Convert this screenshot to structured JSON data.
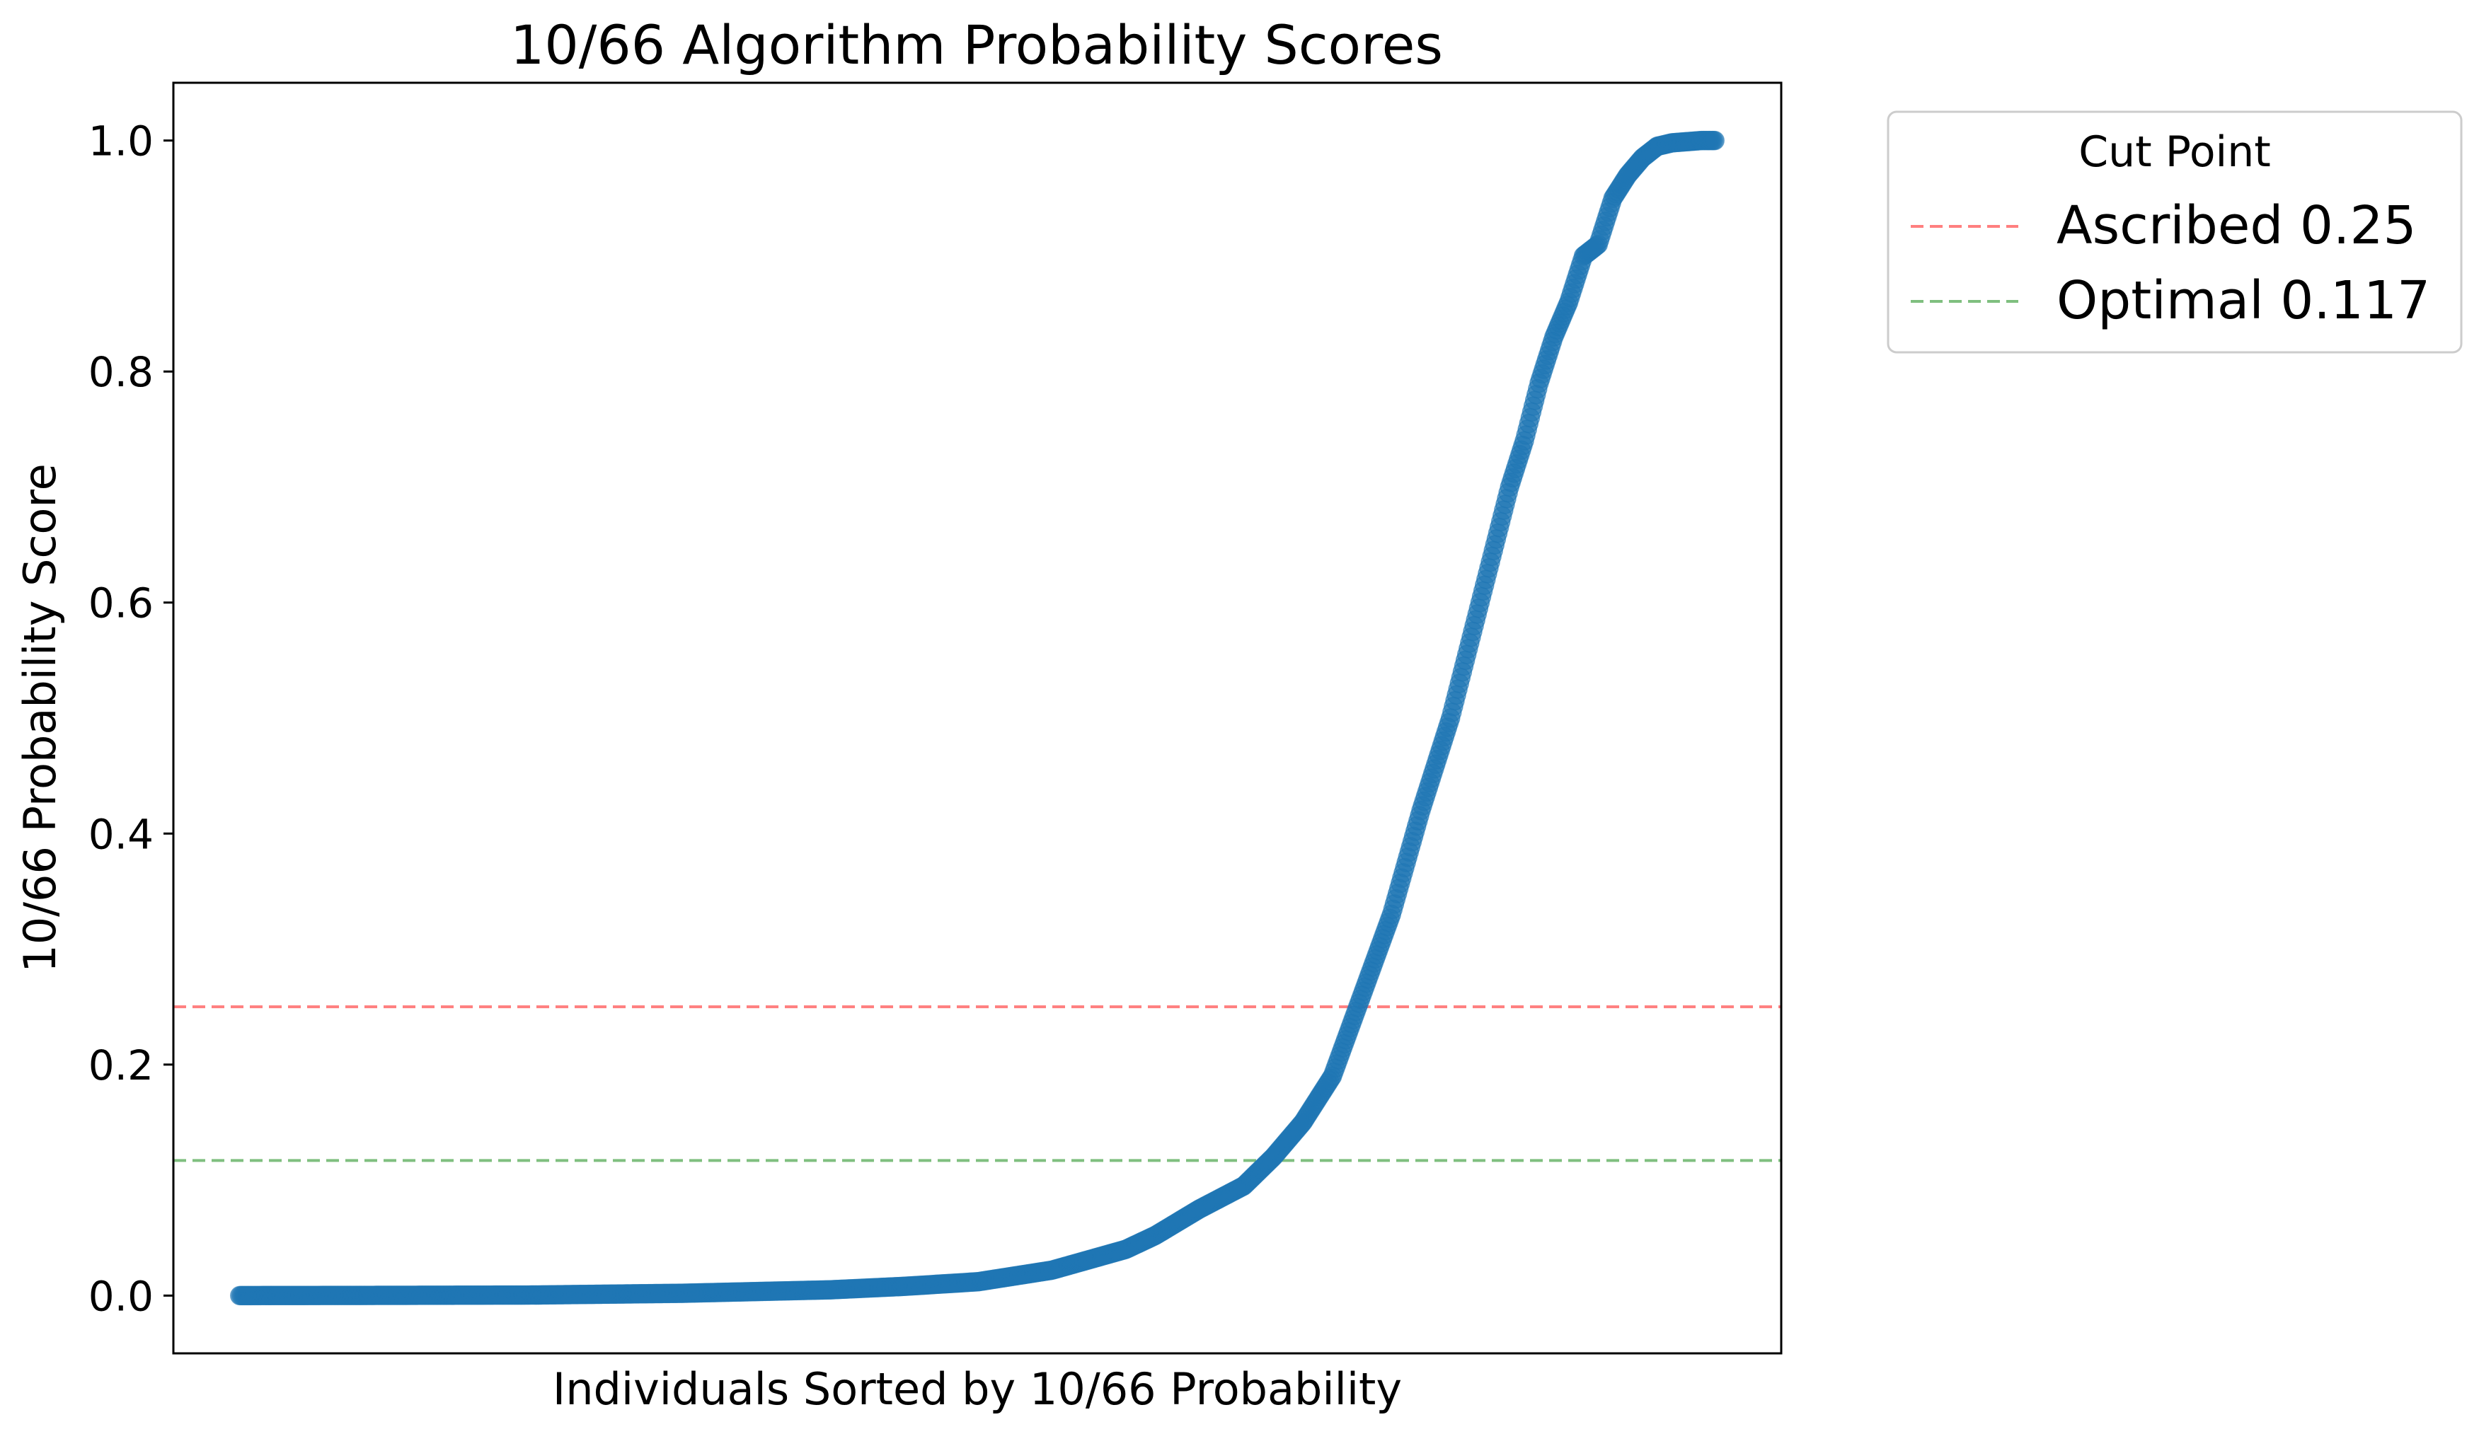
{
  "chart_data": {
    "type": "scatter",
    "title": "10/66 Algorithm Probability Scores",
    "xlabel": "Individuals Sorted by 10/66 Probability",
    "ylabel": "10/66 Probability Score",
    "ylim": [
      -0.05,
      1.05
    ],
    "yticks": [
      "0.0",
      "0.2",
      "0.4",
      "0.6",
      "0.8",
      "1.0"
    ],
    "grid": false,
    "n_points": 1000,
    "series": [
      {
        "color": "#1f77b4",
        "curve_anchors": {
          "x": [
            0,
            100,
            200,
            300,
            400,
            450,
            500,
            550,
            600,
            620,
            650,
            680,
            700,
            720,
            740,
            760,
            780,
            800,
            820,
            830,
            840,
            850,
            860,
            870,
            880,
            890,
            900,
            910,
            920,
            930,
            940,
            950,
            960,
            970,
            980,
            990,
            999
          ],
          "y": [
            0.0,
            0.0002,
            0.0005,
            0.002,
            0.005,
            0.008,
            0.012,
            0.022,
            0.04,
            0.052,
            0.075,
            0.095,
            0.12,
            0.15,
            0.19,
            0.26,
            0.33,
            0.42,
            0.5,
            0.55,
            0.6,
            0.65,
            0.7,
            0.74,
            0.79,
            0.83,
            0.86,
            0.9,
            0.91,
            0.95,
            0.97,
            0.985,
            0.995,
            0.998,
            0.999,
            1.0,
            1.0
          ]
        }
      }
    ],
    "hlines": [
      {
        "label": "Ascribed 0.25",
        "y": 0.25,
        "color": "#ff7f7f"
      },
      {
        "label": "Optimal 0.117",
        "y": 0.117,
        "color": "#7fbf7f"
      }
    ],
    "legend": {
      "title": "Cut Point",
      "placement": "outside-top-right"
    }
  }
}
